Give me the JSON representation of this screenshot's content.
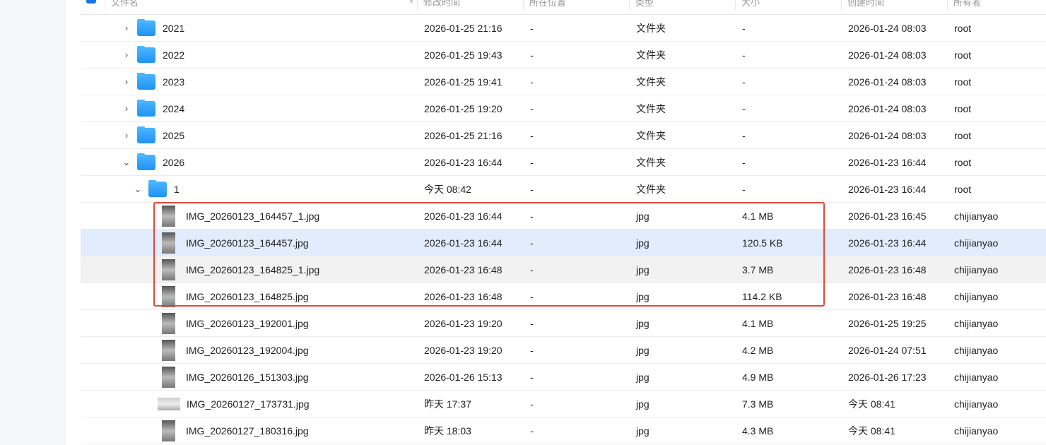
{
  "columns": [
    "文件名",
    "修改时间",
    "所在位置",
    "类型",
    "大小",
    "创建时间",
    "所有者"
  ],
  "highlight_color": "#e5473d",
  "rows": [
    {
      "name": "2021",
      "kind": "folder",
      "level": 0,
      "expanded": false,
      "modified": "2026-01-25 21:16",
      "location": "-",
      "type": "文件夹",
      "size": "-",
      "created": "2026-01-24 08:03",
      "owner": "root"
    },
    {
      "name": "2022",
      "kind": "folder",
      "level": 0,
      "expanded": false,
      "modified": "2026-01-25 19:43",
      "location": "-",
      "type": "文件夹",
      "size": "-",
      "created": "2026-01-24 08:03",
      "owner": "root"
    },
    {
      "name": "2023",
      "kind": "folder",
      "level": 0,
      "expanded": false,
      "modified": "2026-01-25 19:41",
      "location": "-",
      "type": "文件夹",
      "size": "-",
      "created": "2026-01-24 08:03",
      "owner": "root"
    },
    {
      "name": "2024",
      "kind": "folder",
      "level": 0,
      "expanded": false,
      "modified": "2026-01-25 19:20",
      "location": "-",
      "type": "文件夹",
      "size": "-",
      "created": "2026-01-24 08:03",
      "owner": "root"
    },
    {
      "name": "2025",
      "kind": "folder",
      "level": 0,
      "expanded": false,
      "modified": "2026-01-25 21:16",
      "location": "-",
      "type": "文件夹",
      "size": "-",
      "created": "2026-01-24 08:03",
      "owner": "root"
    },
    {
      "name": "2026",
      "kind": "folder",
      "level": 0,
      "expanded": true,
      "modified": "2026-01-23 16:44",
      "location": "-",
      "type": "文件夹",
      "size": "-",
      "created": "2026-01-23 16:44",
      "owner": "root"
    },
    {
      "name": "1",
      "kind": "folder",
      "level": 1,
      "expanded": true,
      "modified": "今天 08:42",
      "location": "-",
      "type": "文件夹",
      "size": "-",
      "created": "2026-01-23 16:44",
      "owner": "root"
    },
    {
      "name": "IMG_20260123_164457_1.jpg",
      "kind": "image",
      "modified": "2026-01-23 16:44",
      "location": "-",
      "type": "jpg",
      "size": "4.1 MB",
      "created": "2026-01-23 16:45",
      "owner": "chijianyao"
    },
    {
      "name": "IMG_20260123_164457.jpg",
      "kind": "image",
      "state": "selected",
      "modified": "2026-01-23 16:44",
      "location": "-",
      "type": "jpg",
      "size": "120.5 KB",
      "created": "2026-01-23 16:44",
      "owner": "chijianyao"
    },
    {
      "name": "IMG_20260123_164825_1.jpg",
      "kind": "image",
      "state": "hover",
      "modified": "2026-01-23 16:48",
      "location": "-",
      "type": "jpg",
      "size": "3.7 MB",
      "created": "2026-01-23 16:48",
      "owner": "chijianyao"
    },
    {
      "name": "IMG_20260123_164825.jpg",
      "kind": "image",
      "modified": "2026-01-23 16:48",
      "location": "-",
      "type": "jpg",
      "size": "114.2 KB",
      "created": "2026-01-23 16:48",
      "owner": "chijianyao"
    },
    {
      "name": "IMG_20260123_192001.jpg",
      "kind": "image",
      "modified": "2026-01-23 19:20",
      "location": "-",
      "type": "jpg",
      "size": "4.1 MB",
      "created": "2026-01-25 19:25",
      "owner": "chijianyao"
    },
    {
      "name": "IMG_20260123_192004.jpg",
      "kind": "image",
      "modified": "2026-01-23 19:20",
      "location": "-",
      "type": "jpg",
      "size": "4.2 MB",
      "created": "2026-01-24 07:51",
      "owner": "chijianyao"
    },
    {
      "name": "IMG_20260126_151303.jpg",
      "kind": "image",
      "modified": "2026-01-26 15:13",
      "location": "-",
      "type": "jpg",
      "size": "4.9 MB",
      "created": "2026-01-26 17:23",
      "owner": "chijianyao"
    },
    {
      "name": "IMG_20260127_173731.jpg",
      "kind": "image",
      "wide": true,
      "modified": "昨天 17:37",
      "location": "-",
      "type": "jpg",
      "size": "7.3 MB",
      "created": "今天 08:41",
      "owner": "chijianyao"
    },
    {
      "name": "IMG_20260127_180316.jpg",
      "kind": "image",
      "modified": "昨天 18:03",
      "location": "-",
      "type": "jpg",
      "size": "4.3 MB",
      "created": "今天 08:41",
      "owner": "chijianyao"
    }
  ]
}
